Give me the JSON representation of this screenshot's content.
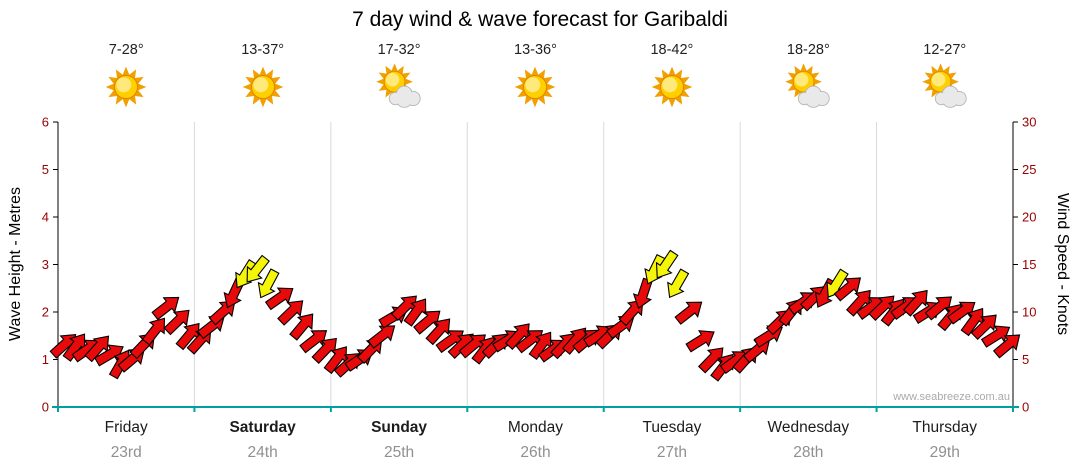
{
  "title": "7 day wind & wave forecast for Garibaldi",
  "watermark": "www.seabreeze.com.au",
  "colors": {
    "arrow": "#e60a0a",
    "arrow_strong": "#f5f50a",
    "arrow_outline": "#000000",
    "axis_bottom": "#00a0a0",
    "grid": "#d9d9d9",
    "axis_line": "#000000",
    "tick_label": "#990000",
    "date_label": "#909090"
  },
  "left_axis": {
    "label": "Wave Height - Metres",
    "min": 0,
    "max": 6,
    "ticks": [
      0,
      1,
      2,
      3,
      4,
      5,
      6
    ]
  },
  "right_axis": {
    "label": "Wind Speed - Knots",
    "min": 0,
    "max": 30,
    "ticks": [
      0,
      5,
      10,
      15,
      20,
      25,
      30
    ]
  },
  "days": [
    {
      "name": "Friday",
      "date": "23rd",
      "temp": "7-28°",
      "icon": "sunny",
      "weekend": false
    },
    {
      "name": "Saturday",
      "date": "24th",
      "temp": "13-37°",
      "icon": "sunny",
      "weekend": true
    },
    {
      "name": "Sunday",
      "date": "25th",
      "temp": "17-32°",
      "icon": "partly-cloudy",
      "weekend": true
    },
    {
      "name": "Monday",
      "date": "26th",
      "temp": "13-36°",
      "icon": "sunny",
      "weekend": false
    },
    {
      "name": "Tuesday",
      "date": "27th",
      "temp": "18-42°",
      "icon": "sunny",
      "weekend": false
    },
    {
      "name": "Wednesday",
      "date": "28th",
      "temp": "18-28°",
      "icon": "partly-cloudy",
      "weekend": false
    },
    {
      "name": "Thursday",
      "date": "29th",
      "temp": "12-27°",
      "icon": "partly-cloudy",
      "weekend": false
    }
  ],
  "chart_data": {
    "type": "wind-arrows",
    "x_unit": "time, 2-hour steps across each day",
    "y_unit": "knots (right axis); wave metres equivalent on left axis, 5 knots per metre",
    "yellow_threshold": 12.8,
    "grid": "vertical day separators only",
    "days": [
      {
        "day": "Friday",
        "knots": [
          6.5,
          6.3,
          6.0,
          6.2,
          5.5,
          4.5,
          5.0,
          6.5,
          8.0,
          10.5,
          9.0,
          7.5
        ],
        "dir": [
          48,
          36,
          55,
          42,
          60,
          30,
          50,
          44,
          38,
          52,
          46,
          40
        ]
      },
      {
        "day": "Saturday",
        "knots": [
          7.0,
          8.5,
          10.0,
          12.0,
          14.0,
          14.5,
          13.0,
          11.5,
          10.0,
          8.5,
          7.0,
          6.0
        ],
        "dir": [
          42,
          52,
          48,
          205,
          212,
          218,
          208,
          55,
          46,
          40,
          52,
          44
        ]
      },
      {
        "day": "Sunday",
        "knots": [
          5.0,
          4.5,
          5.0,
          6.0,
          7.5,
          9.5,
          10.5,
          10.0,
          9.0,
          8.0,
          7.0,
          6.5
        ],
        "dir": [
          38,
          48,
          56,
          44,
          52,
          60,
          46,
          36,
          50,
          42,
          54,
          46
        ]
      },
      {
        "day": "Monday",
        "knots": [
          6.5,
          6.0,
          6.5,
          7.0,
          7.5,
          7.0,
          6.5,
          6.0,
          6.5,
          7.0,
          7.0,
          7.5
        ],
        "dir": [
          50,
          38,
          46,
          58,
          42,
          52,
          36,
          54,
          44,
          40,
          50,
          58
        ]
      },
      {
        "day": "Tuesday",
        "knots": [
          7.5,
          8.5,
          10.0,
          12.0,
          14.5,
          15.0,
          13.0,
          10.0,
          7.0,
          5.0,
          4.2,
          4.8
        ],
        "dir": [
          46,
          54,
          42,
          198,
          206,
          214,
          210,
          52,
          58,
          44,
          38,
          54
        ]
      },
      {
        "day": "Wednesday",
        "knots": [
          5.0,
          6.0,
          7.5,
          9.0,
          10.0,
          11.0,
          11.5,
          12.0,
          13.0,
          12.5,
          11.0,
          10.5
        ],
        "dir": [
          42,
          50,
          58,
          46,
          38,
          54,
          46,
          208,
          212,
          50,
          42,
          54
        ]
      },
      {
        "day": "Thursday",
        "knots": [
          10.5,
          10.0,
          10.5,
          11.0,
          10.0,
          10.5,
          9.5,
          10.0,
          9.0,
          8.5,
          7.5,
          6.5
        ],
        "dir": [
          46,
          38,
          54,
          42,
          58,
          50,
          40,
          54,
          36,
          46,
          58,
          50
        ]
      }
    ]
  }
}
